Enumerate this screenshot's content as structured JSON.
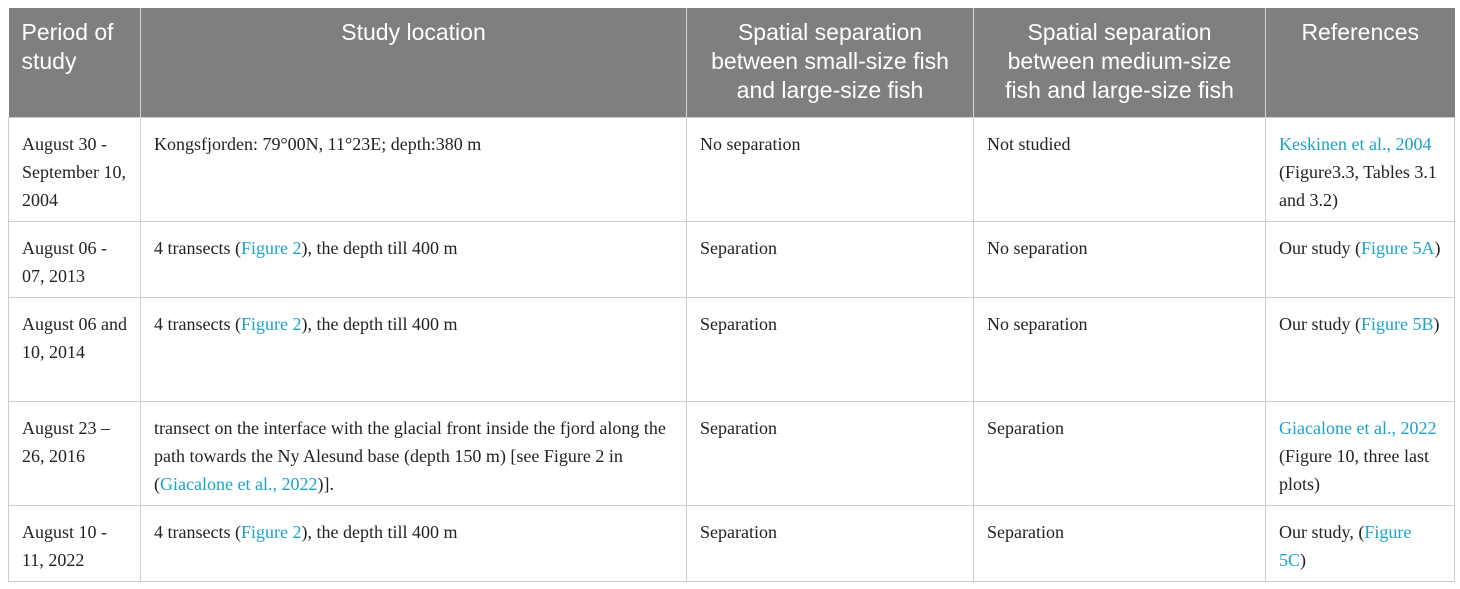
{
  "headers": [
    "Period of study",
    "Study location",
    "Spatial separation between small-size fish and large-size fish",
    "Spatial separation between medium-size fish and large-size fish",
    "References"
  ],
  "rows": [
    {
      "period": "August 30 - September 10, 2004",
      "location": {
        "text": "Kongsfjorden: 79°00N, 11°23E; depth:380 m"
      },
      "small_vs_large": "No separation",
      "medium_vs_large": "Not studied",
      "reference": {
        "link": "Keskinen et al., 2004",
        "after": " (Figure3.3, Tables 3.1 and 3.2)"
      }
    },
    {
      "period": "August 06 - 07, 2013",
      "location": {
        "before": "4 transects (",
        "link": "Figure 2",
        "after": "), the depth till 400 m"
      },
      "small_vs_large": "Separation",
      "medium_vs_large": "No separation",
      "reference": {
        "before": "Our study (",
        "link": "Figure 5A",
        "after": ")"
      }
    },
    {
      "period": "August 06 and 10, 2014",
      "location": {
        "before": "4 transects (",
        "link": "Figure 2",
        "after": "), the depth till 400 m"
      },
      "small_vs_large": "Separation",
      "medium_vs_large": "No separation",
      "reference": {
        "before": "Our study (",
        "link": "Figure 5B",
        "after": ")"
      }
    },
    {
      "period": "August 23 – 26, 2016",
      "location": {
        "before": "transect on the interface with the glacial front inside the fjord along the path towards the Ny Alesund base (depth 150 m) [see Figure 2 in (",
        "link": "Giacalone et al., 2022",
        "after": ")]."
      },
      "small_vs_large": "Separation",
      "medium_vs_large": "Separation",
      "reference": {
        "link": "Giacalone et al., 2022",
        "after": " (Figure 10, three last plots)"
      }
    },
    {
      "period": "August 10 - 11, 2022",
      "location": {
        "before": "4 transects (",
        "link": "Figure 2",
        "after": "), the depth till 400 m"
      },
      "small_vs_large": "Separation",
      "medium_vs_large": "Separation",
      "reference": {
        "before": "Our study, (",
        "link": "Figure 5C",
        "after": ")"
      }
    }
  ],
  "colors": {
    "header_bg": "#7f7f7f",
    "header_text": "#ffffff",
    "link": "#1aa3c9",
    "border": "#cccccc"
  }
}
